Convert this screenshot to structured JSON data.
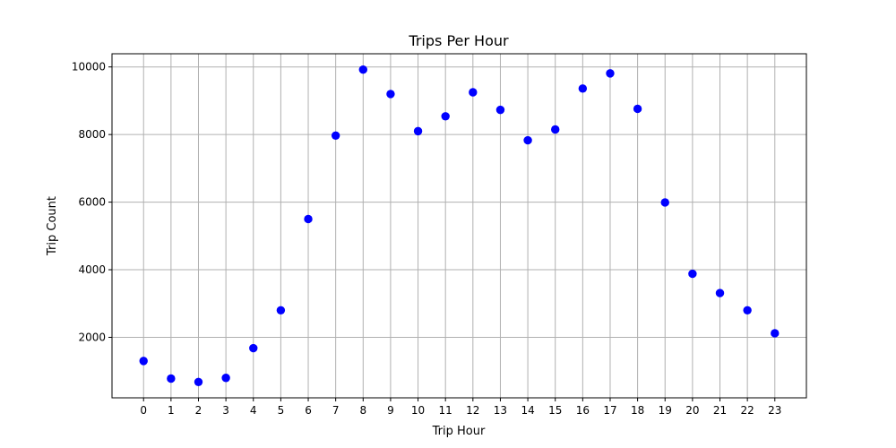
{
  "chart_data": {
    "type": "scatter",
    "title": "Trips Per Hour",
    "xlabel": "Trip Hour",
    "ylabel": "Trip Count",
    "x": [
      0,
      1,
      2,
      3,
      4,
      5,
      6,
      7,
      8,
      9,
      10,
      11,
      12,
      13,
      14,
      15,
      16,
      17,
      18,
      19,
      20,
      21,
      22,
      23
    ],
    "y": [
      1300,
      780,
      680,
      800,
      1680,
      2800,
      5500,
      7970,
      9920,
      9200,
      8100,
      8540,
      9250,
      8730,
      7830,
      8150,
      9360,
      9810,
      8760,
      5990,
      3880,
      3310,
      2800,
      2120
    ],
    "xticks": [
      "0",
      "1",
      "2",
      "3",
      "4",
      "5",
      "6",
      "7",
      "8",
      "9",
      "10",
      "11",
      "12",
      "13",
      "14",
      "15",
      "16",
      "17",
      "18",
      "19",
      "20",
      "21",
      "22",
      "23"
    ],
    "yticks": [
      2000,
      4000,
      6000,
      8000,
      10000
    ],
    "ytick_labels": [
      "2000",
      "4000",
      "6000",
      "8000",
      "10000"
    ],
    "xlim": [
      -1.15,
      24.15
    ],
    "ylim": [
      210,
      10390
    ],
    "grid": true,
    "marker_color": "#0000ff"
  }
}
